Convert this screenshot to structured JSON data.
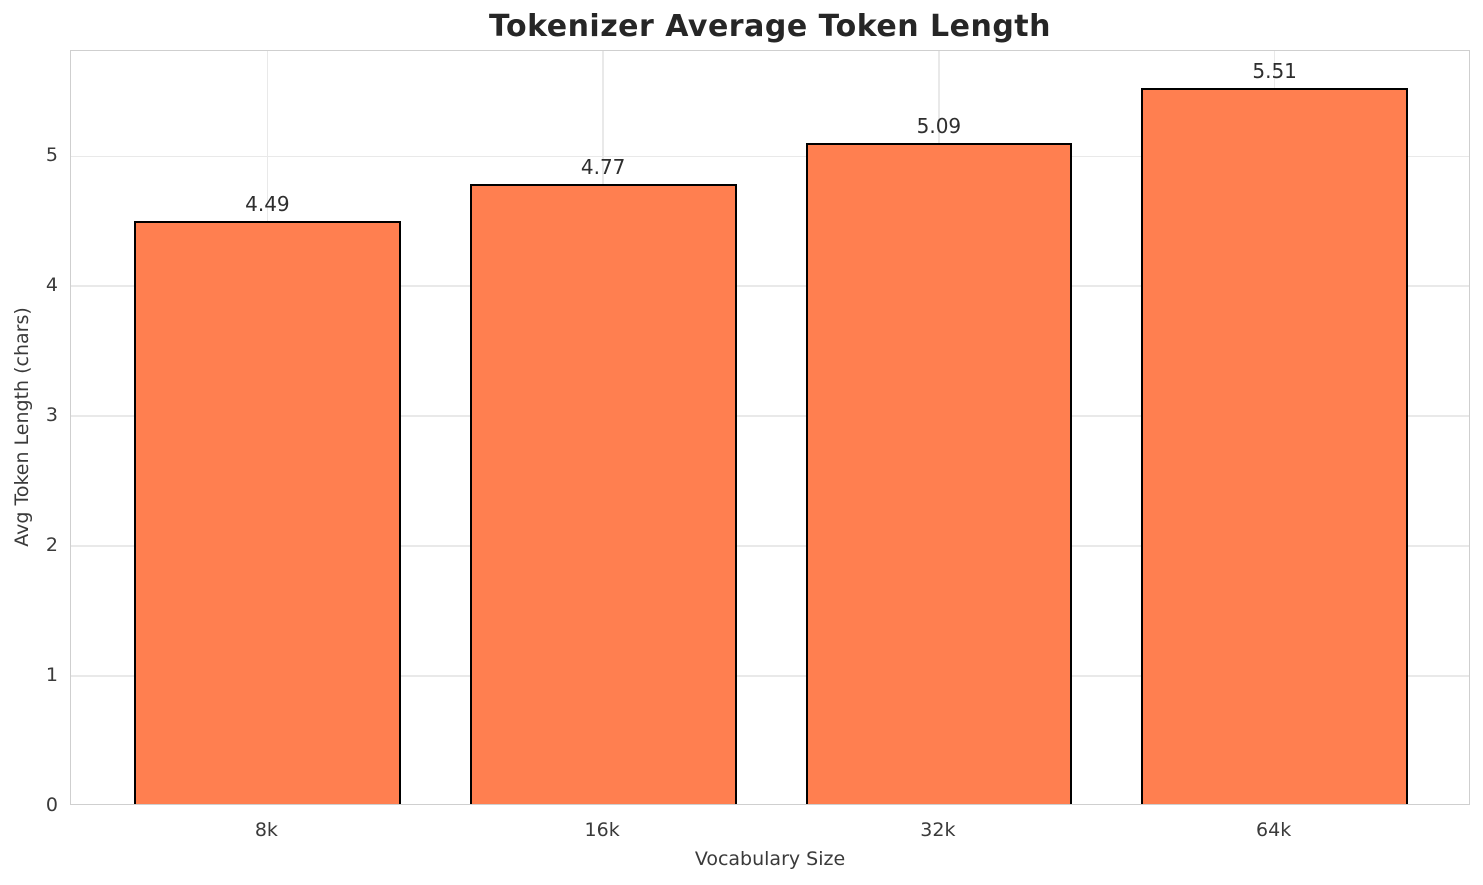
{
  "chart_data": {
    "type": "bar",
    "title": "Tokenizer Average Token Length",
    "xlabel": "Vocabulary Size",
    "ylabel": "Avg Token Length (chars)",
    "categories": [
      "8k",
      "16k",
      "32k",
      "64k"
    ],
    "values": [
      4.49,
      4.77,
      5.09,
      5.51
    ],
    "value_labels": [
      "4.49",
      "4.77",
      "5.09",
      "5.51"
    ],
    "yticks": [
      0,
      1,
      2,
      3,
      4,
      5
    ],
    "ylim": [
      0,
      5.81
    ],
    "grid": true,
    "legend": "none",
    "bar_color": "#FF7F50",
    "bar_edge_color": "#000000",
    "grid_color": "#e9e9e9",
    "spine_color": "#cfcfcf",
    "text_color": "#2e2e2e"
  }
}
